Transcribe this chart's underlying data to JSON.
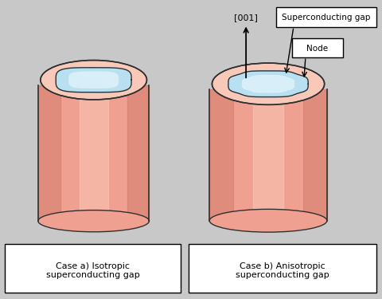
{
  "bg_color": "#c8c8c8",
  "salmon_color": "#F0A090",
  "salmon_dark": "#C87060",
  "salmon_light": "#F8C8B8",
  "blue_light": "#B8E0F0",
  "blue_highlight": "#D8EFFA",
  "outline_color": "#303030",
  "label_a": "Case a) Isotropic\nsuperconducting gap",
  "label_b": "Case b) Anisotropic\nsuperconducting gap",
  "sc_gap_label": "Superconducting gap",
  "node_label": "Node",
  "axis_label": "[001]"
}
